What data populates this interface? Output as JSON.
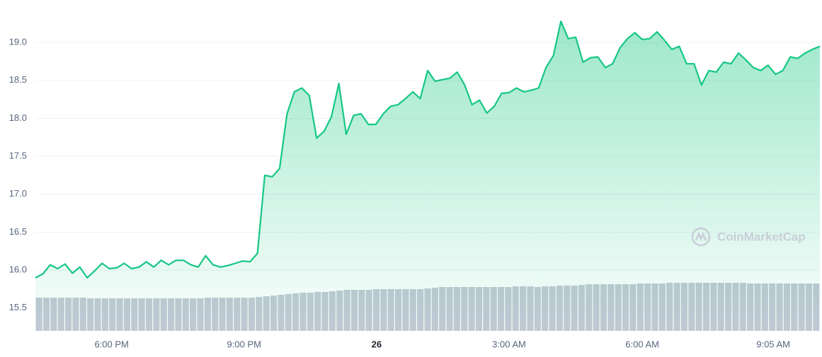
{
  "chart_data": {
    "type": "area",
    "watermark": "CoinMarketCap",
    "xlim": [
      0,
      106
    ],
    "xticks": [
      {
        "value": 10.3,
        "label": "6:00 PM"
      },
      {
        "value": 28.2,
        "label": "9:00 PM"
      },
      {
        "value": 46.1,
        "label": "26",
        "bold": true
      },
      {
        "value": 64.0,
        "label": "3:00 AM"
      },
      {
        "value": 82.0,
        "label": "6:00 AM"
      },
      {
        "value": 99.7,
        "label": "9:05 AM"
      }
    ],
    "ylim": [
      15.2,
      19.56
    ],
    "yticks": [
      15.5,
      {
        "value": 16,
        "label": "16.0"
      },
      16.5,
      {
        "value": 17,
        "label": "17.0"
      },
      17.5,
      {
        "value": 18,
        "label": "18.0"
      },
      18.5,
      {
        "value": 19,
        "label": "19.0"
      }
    ],
    "grid": true,
    "series": [
      {
        "color": "#16c784",
        "values": [
          15.9,
          15.95,
          16.07,
          16.02,
          16.08,
          15.96,
          16.04,
          15.9,
          15.99,
          16.09,
          16.02,
          16.03,
          16.09,
          16.02,
          16.04,
          16.11,
          16.04,
          16.13,
          16.07,
          16.13,
          16.13,
          16.07,
          16.04,
          16.19,
          16.07,
          16.04,
          16.06,
          16.09,
          16.12,
          16.11,
          16.22,
          17.25,
          17.23,
          17.34,
          18.06,
          18.35,
          18.4,
          18.3,
          17.74,
          17.83,
          18.02,
          18.46,
          17.79,
          18.04,
          18.06,
          17.92,
          17.92,
          18.06,
          18.16,
          18.18,
          18.26,
          18.35,
          18.26,
          18.63,
          18.49,
          18.51,
          18.53,
          18.61,
          18.44,
          18.18,
          18.24,
          18.07,
          18.16,
          18.33,
          18.34,
          18.4,
          18.35,
          18.37,
          18.4,
          18.67,
          18.83,
          19.28,
          19.05,
          19.07,
          18.74,
          18.8,
          18.81,
          18.67,
          18.72,
          18.93,
          19.05,
          19.13,
          19.04,
          19.05,
          19.14,
          19.03,
          18.91,
          18.95,
          18.72,
          18.72,
          18.44,
          18.63,
          18.61,
          18.74,
          18.72,
          18.86,
          18.77,
          18.67,
          18.63,
          18.7,
          18.58,
          18.63,
          18.81,
          18.79,
          18.86,
          18.91,
          18.95
        ]
      },
      {
        "color": "#c3c9d5",
        "axis": "volume",
        "values": [
          47,
          47,
          47,
          47,
          47,
          47,
          47,
          46,
          46,
          46,
          46,
          46,
          46,
          46,
          46,
          46,
          46,
          46,
          46,
          46,
          46,
          46,
          46,
          47,
          47,
          47,
          47,
          47,
          47,
          47,
          48,
          49,
          50,
          51,
          52,
          53,
          54,
          54,
          55,
          55,
          56,
          57,
          58,
          58,
          58,
          58,
          59,
          59,
          59,
          59,
          59,
          59,
          59,
          60,
          61,
          62,
          62,
          62,
          62,
          62,
          62,
          62,
          62,
          62,
          62,
          63,
          63,
          63,
          62,
          63,
          63,
          64,
          64,
          64,
          65,
          66,
          66,
          66,
          66,
          66,
          66,
          66,
          67,
          67,
          67,
          67,
          68,
          68,
          68,
          68,
          68,
          68,
          68,
          68,
          68,
          68,
          68,
          67,
          67,
          67,
          67,
          67,
          67,
          67,
          67,
          67,
          67
        ]
      }
    ]
  }
}
